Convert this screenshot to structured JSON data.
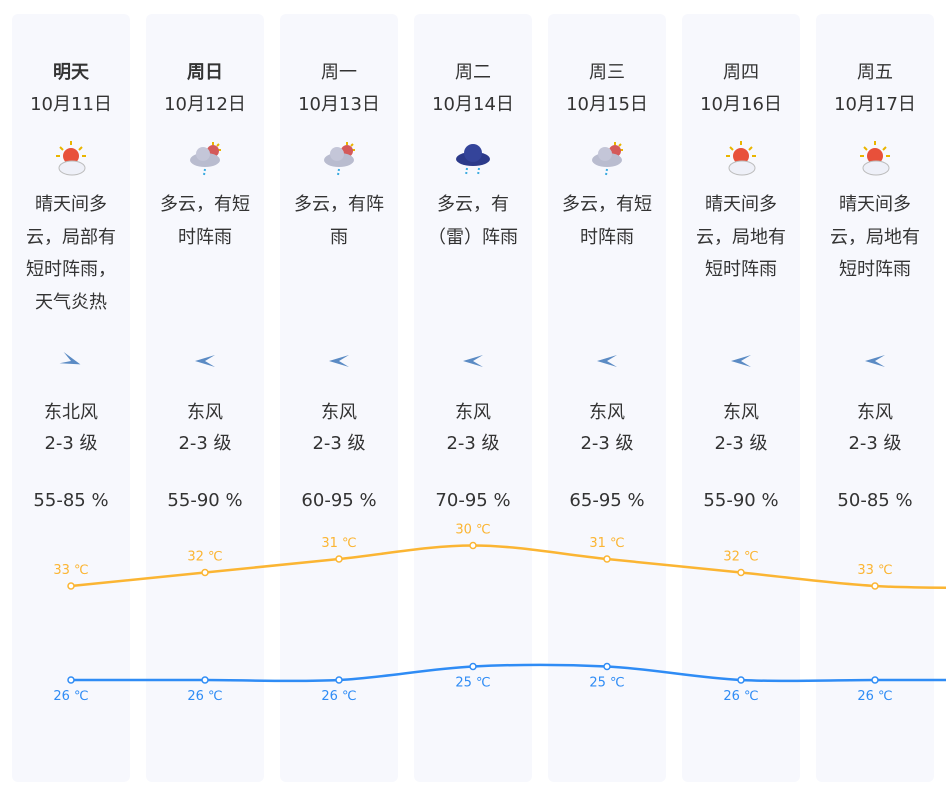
{
  "days": [
    {
      "day": "明天",
      "date": "10月11日",
      "icon": "sunny-cloudy-icon",
      "desc": "晴天间多云，局部有短时阵雨，天气炎热",
      "wind_dir": "东北风",
      "wind_level": "2-3 级",
      "humidity": "55-85 %",
      "high": 33,
      "low": 26,
      "high_label": "33 ℃",
      "low_label": "26 ℃"
    },
    {
      "day": "周日",
      "date": "10月12日",
      "icon": "cloudy-shower-icon",
      "desc": "多云，有短时阵雨",
      "wind_dir": "东风",
      "wind_level": "2-3 级",
      "humidity": "55-90 %",
      "high": 32,
      "low": 26,
      "high_label": "32 ℃",
      "low_label": "26 ℃"
    },
    {
      "day": "周一",
      "date": "10月13日",
      "icon": "cloudy-shower-icon",
      "desc": "多云，有阵雨",
      "wind_dir": "东风",
      "wind_level": "2-3 级",
      "humidity": "60-95 %",
      "high": 31,
      "low": 26,
      "high_label": "31 ℃",
      "low_label": "26 ℃"
    },
    {
      "day": "周二",
      "date": "10月14日",
      "icon": "thunder-rain-icon",
      "desc": "多云，有（雷）阵雨",
      "wind_dir": "东风",
      "wind_level": "2-3 级",
      "humidity": "70-95 %",
      "high": 30,
      "low": 25,
      "high_label": "30 ℃",
      "low_label": "25 ℃"
    },
    {
      "day": "周三",
      "date": "10月15日",
      "icon": "cloudy-shower-icon",
      "desc": "多云，有短时阵雨",
      "wind_dir": "东风",
      "wind_level": "2-3 级",
      "humidity": "65-95 %",
      "high": 31,
      "low": 25,
      "high_label": "31 ℃",
      "low_label": "25 ℃"
    },
    {
      "day": "周四",
      "date": "10月16日",
      "icon": "sunny-cloudy-icon",
      "desc": "晴天间多云，局地有短时阵雨",
      "wind_dir": "东风",
      "wind_level": "2-3 级",
      "humidity": "55-90 %",
      "high": 32,
      "low": 26,
      "high_label": "32 ℃",
      "low_label": "26 ℃"
    },
    {
      "day": "周五",
      "date": "10月17日",
      "icon": "sunny-cloudy-icon",
      "desc": "晴天间多云，局地有短时阵雨",
      "wind_dir": "东风",
      "wind_level": "2-3 级",
      "humidity": "50-85 %",
      "high": 33,
      "low": 26,
      "high_label": "33 ℃",
      "low_label": "26 ℃"
    }
  ],
  "colors": {
    "high": "#fbb533",
    "low": "#2f8cf5"
  }
}
